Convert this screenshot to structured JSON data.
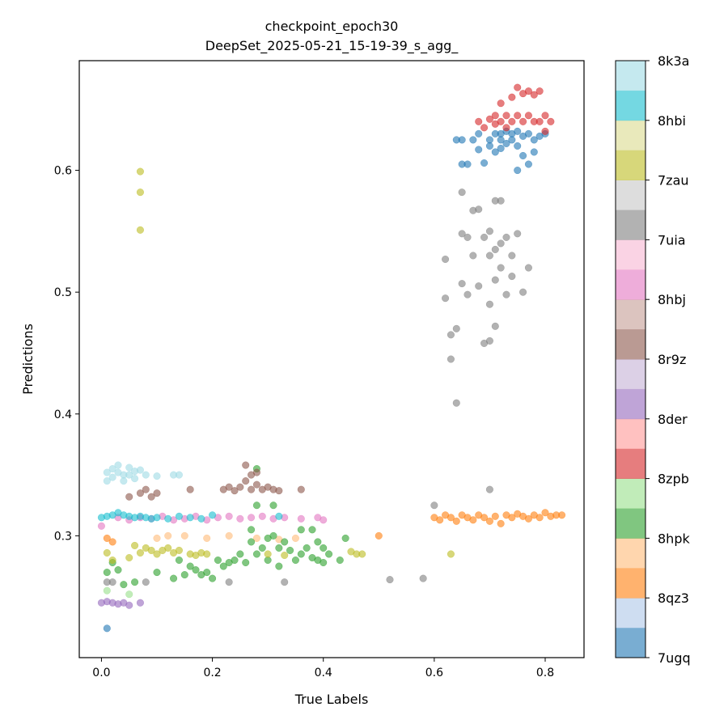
{
  "chart_data": {
    "type": "scatter",
    "title": "checkpoint_epoch30",
    "subtitle": "DeepSet_2025-05-21_15-19-39_s_agg_",
    "xlabel": "True Labels",
    "ylabel": "Predictions",
    "xlim": [
      -0.04,
      0.87
    ],
    "ylim": [
      0.2,
      0.69
    ],
    "xticks": [
      0.0,
      0.2,
      0.4,
      0.6,
      0.8
    ],
    "xtick_labels": [
      "0.0",
      "0.2",
      "0.4",
      "0.6",
      "0.8"
    ],
    "yticks": [
      0.3,
      0.4,
      0.5,
      0.6
    ],
    "ytick_labels": [
      "0.3",
      "0.4",
      "0.5",
      "0.6"
    ],
    "grid": false,
    "colorbar": {
      "placement": "right",
      "labels": [
        "7ugq",
        "8qz3",
        "8hpk",
        "8zpb",
        "8der",
        "8r9z",
        "8hbj",
        "7uia",
        "7zau",
        "8hbi",
        "8k3a"
      ],
      "colors": [
        "#1f77b4",
        "#aec7e8",
        "#ff7f0e",
        "#ffbb78",
        "#2ca02c",
        "#98df8a",
        "#d62728",
        "#ff9896",
        "#9467bd",
        "#c5b0d5",
        "#8c564b",
        "#c49c94",
        "#e377c2",
        "#f7b6d2",
        "#7f7f7f",
        "#c7c7c7",
        "#bcbd22",
        "#dbdb8d",
        "#17becf",
        "#9edae5"
      ]
    },
    "series": [
      {
        "color": "#1f77b4",
        "points": [
          [
            0.01,
            0.224
          ],
          [
            0.64,
            0.625
          ],
          [
            0.65,
            0.625
          ],
          [
            0.65,
            0.605
          ],
          [
            0.66,
            0.605
          ],
          [
            0.67,
            0.625
          ],
          [
            0.68,
            0.63
          ],
          [
            0.68,
            0.617
          ],
          [
            0.69,
            0.606
          ],
          [
            0.7,
            0.625
          ],
          [
            0.7,
            0.62
          ],
          [
            0.71,
            0.63
          ],
          [
            0.71,
            0.615
          ],
          [
            0.72,
            0.63
          ],
          [
            0.72,
            0.625
          ],
          [
            0.72,
            0.618
          ],
          [
            0.73,
            0.632
          ],
          [
            0.73,
            0.622
          ],
          [
            0.74,
            0.63
          ],
          [
            0.74,
            0.625
          ],
          [
            0.75,
            0.632
          ],
          [
            0.75,
            0.62
          ],
          [
            0.75,
            0.6
          ],
          [
            0.76,
            0.628
          ],
          [
            0.76,
            0.612
          ],
          [
            0.77,
            0.63
          ],
          [
            0.77,
            0.605
          ],
          [
            0.78,
            0.625
          ],
          [
            0.78,
            0.615
          ],
          [
            0.79,
            0.628
          ],
          [
            0.8,
            0.63
          ]
        ]
      },
      {
        "color": "#ff7f0e",
        "points": [
          [
            0.01,
            0.298
          ],
          [
            0.02,
            0.295
          ],
          [
            0.5,
            0.3
          ],
          [
            0.6,
            0.315
          ],
          [
            0.61,
            0.313
          ],
          [
            0.62,
            0.317
          ],
          [
            0.63,
            0.315
          ],
          [
            0.64,
            0.312
          ],
          [
            0.65,
            0.317
          ],
          [
            0.66,
            0.315
          ],
          [
            0.67,
            0.313
          ],
          [
            0.68,
            0.317
          ],
          [
            0.69,
            0.315
          ],
          [
            0.7,
            0.312
          ],
          [
            0.71,
            0.316
          ],
          [
            0.72,
            0.31
          ],
          [
            0.73,
            0.317
          ],
          [
            0.74,
            0.315
          ],
          [
            0.75,
            0.318
          ],
          [
            0.76,
            0.316
          ],
          [
            0.77,
            0.314
          ],
          [
            0.78,
            0.317
          ],
          [
            0.79,
            0.315
          ],
          [
            0.8,
            0.319
          ],
          [
            0.81,
            0.316
          ],
          [
            0.82,
            0.317
          ],
          [
            0.83,
            0.317
          ]
        ]
      },
      {
        "color": "#ffbb78",
        "points": [
          [
            0.1,
            0.298
          ],
          [
            0.12,
            0.3
          ],
          [
            0.15,
            0.3
          ],
          [
            0.19,
            0.298
          ],
          [
            0.23,
            0.3
          ],
          [
            0.28,
            0.298
          ],
          [
            0.32,
            0.297
          ],
          [
            0.35,
            0.298
          ]
        ]
      },
      {
        "color": "#2ca02c",
        "points": [
          [
            0.01,
            0.27
          ],
          [
            0.02,
            0.278
          ],
          [
            0.03,
            0.272
          ],
          [
            0.04,
            0.26
          ],
          [
            0.06,
            0.262
          ],
          [
            0.1,
            0.27
          ],
          [
            0.13,
            0.265
          ],
          [
            0.14,
            0.28
          ],
          [
            0.15,
            0.268
          ],
          [
            0.16,
            0.275
          ],
          [
            0.17,
            0.272
          ],
          [
            0.18,
            0.268
          ],
          [
            0.19,
            0.27
          ],
          [
            0.2,
            0.265
          ],
          [
            0.21,
            0.28
          ],
          [
            0.22,
            0.275
          ],
          [
            0.23,
            0.278
          ],
          [
            0.24,
            0.28
          ],
          [
            0.25,
            0.285
          ],
          [
            0.26,
            0.278
          ],
          [
            0.27,
            0.305
          ],
          [
            0.27,
            0.295
          ],
          [
            0.28,
            0.285
          ],
          [
            0.28,
            0.355
          ],
          [
            0.29,
            0.29
          ],
          [
            0.3,
            0.298
          ],
          [
            0.3,
            0.28
          ],
          [
            0.31,
            0.3
          ],
          [
            0.32,
            0.29
          ],
          [
            0.32,
            0.275
          ],
          [
            0.33,
            0.295
          ],
          [
            0.34,
            0.288
          ],
          [
            0.35,
            0.28
          ],
          [
            0.36,
            0.285
          ],
          [
            0.36,
            0.305
          ],
          [
            0.37,
            0.29
          ],
          [
            0.38,
            0.282
          ],
          [
            0.38,
            0.305
          ],
          [
            0.39,
            0.295
          ],
          [
            0.39,
            0.28
          ],
          [
            0.4,
            0.278
          ],
          [
            0.4,
            0.29
          ],
          [
            0.41,
            0.285
          ],
          [
            0.43,
            0.28
          ],
          [
            0.44,
            0.298
          ],
          [
            0.28,
            0.325
          ],
          [
            0.31,
            0.325
          ]
        ]
      },
      {
        "color": "#98df8a",
        "points": [
          [
            0.01,
            0.255
          ],
          [
            0.05,
            0.252
          ]
        ]
      },
      {
        "color": "#d62728",
        "points": [
          [
            0.68,
            0.64
          ],
          [
            0.69,
            0.635
          ],
          [
            0.7,
            0.642
          ],
          [
            0.71,
            0.638
          ],
          [
            0.71,
            0.645
          ],
          [
            0.72,
            0.64
          ],
          [
            0.72,
            0.655
          ],
          [
            0.73,
            0.635
          ],
          [
            0.73,
            0.645
          ],
          [
            0.74,
            0.66
          ],
          [
            0.74,
            0.64
          ],
          [
            0.75,
            0.668
          ],
          [
            0.75,
            0.645
          ],
          [
            0.76,
            0.663
          ],
          [
            0.76,
            0.64
          ],
          [
            0.77,
            0.665
          ],
          [
            0.77,
            0.645
          ],
          [
            0.78,
            0.662
          ],
          [
            0.78,
            0.64
          ],
          [
            0.79,
            0.665
          ],
          [
            0.79,
            0.64
          ],
          [
            0.8,
            0.645
          ],
          [
            0.8,
            0.632
          ],
          [
            0.81,
            0.64
          ]
        ]
      },
      {
        "color": "#9467bd",
        "points": [
          [
            0.0,
            0.245
          ],
          [
            0.01,
            0.246
          ],
          [
            0.02,
            0.245
          ],
          [
            0.03,
            0.244
          ],
          [
            0.04,
            0.245
          ],
          [
            0.05,
            0.243
          ],
          [
            0.07,
            0.245
          ]
        ]
      },
      {
        "color": "#8c564b",
        "points": [
          [
            0.05,
            0.332
          ],
          [
            0.07,
            0.335
          ],
          [
            0.08,
            0.338
          ],
          [
            0.09,
            0.332
          ],
          [
            0.1,
            0.335
          ],
          [
            0.16,
            0.338
          ],
          [
            0.22,
            0.338
          ],
          [
            0.23,
            0.34
          ],
          [
            0.24,
            0.337
          ],
          [
            0.25,
            0.34
          ],
          [
            0.26,
            0.345
          ],
          [
            0.26,
            0.358
          ],
          [
            0.27,
            0.338
          ],
          [
            0.27,
            0.35
          ],
          [
            0.28,
            0.342
          ],
          [
            0.28,
            0.352
          ],
          [
            0.29,
            0.338
          ],
          [
            0.3,
            0.34
          ],
          [
            0.31,
            0.338
          ],
          [
            0.32,
            0.337
          ],
          [
            0.36,
            0.338
          ]
        ]
      },
      {
        "color": "#e377c2",
        "points": [
          [
            0.0,
            0.308
          ],
          [
            0.03,
            0.315
          ],
          [
            0.05,
            0.313
          ],
          [
            0.07,
            0.315
          ],
          [
            0.09,
            0.314
          ],
          [
            0.11,
            0.316
          ],
          [
            0.13,
            0.313
          ],
          [
            0.15,
            0.314
          ],
          [
            0.17,
            0.316
          ],
          [
            0.19,
            0.313
          ],
          [
            0.21,
            0.315
          ],
          [
            0.23,
            0.316
          ],
          [
            0.25,
            0.314
          ],
          [
            0.27,
            0.315
          ],
          [
            0.29,
            0.316
          ],
          [
            0.31,
            0.314
          ],
          [
            0.33,
            0.315
          ],
          [
            0.36,
            0.314
          ],
          [
            0.39,
            0.315
          ],
          [
            0.4,
            0.313
          ]
        ]
      },
      {
        "color": "#7f7f7f",
        "points": [
          [
            0.01,
            0.262
          ],
          [
            0.02,
            0.262
          ],
          [
            0.08,
            0.262
          ],
          [
            0.23,
            0.262
          ],
          [
            0.33,
            0.262
          ],
          [
            0.52,
            0.264
          ],
          [
            0.58,
            0.265
          ],
          [
            0.6,
            0.325
          ],
          [
            0.62,
            0.527
          ],
          [
            0.62,
            0.495
          ],
          [
            0.63,
            0.465
          ],
          [
            0.63,
            0.445
          ],
          [
            0.64,
            0.47
          ],
          [
            0.64,
            0.409
          ],
          [
            0.65,
            0.582
          ],
          [
            0.65,
            0.548
          ],
          [
            0.65,
            0.507
          ],
          [
            0.66,
            0.545
          ],
          [
            0.66,
            0.498
          ],
          [
            0.67,
            0.567
          ],
          [
            0.67,
            0.53
          ],
          [
            0.68,
            0.568
          ],
          [
            0.68,
            0.505
          ],
          [
            0.69,
            0.545
          ],
          [
            0.69,
            0.458
          ],
          [
            0.7,
            0.55
          ],
          [
            0.7,
            0.53
          ],
          [
            0.7,
            0.49
          ],
          [
            0.7,
            0.46
          ],
          [
            0.71,
            0.575
          ],
          [
            0.71,
            0.535
          ],
          [
            0.71,
            0.51
          ],
          [
            0.71,
            0.472
          ],
          [
            0.72,
            0.575
          ],
          [
            0.72,
            0.54
          ],
          [
            0.72,
            0.52
          ],
          [
            0.73,
            0.545
          ],
          [
            0.73,
            0.498
          ],
          [
            0.74,
            0.53
          ],
          [
            0.74,
            0.513
          ],
          [
            0.75,
            0.548
          ],
          [
            0.76,
            0.5
          ],
          [
            0.77,
            0.52
          ],
          [
            0.7,
            0.338
          ]
        ]
      },
      {
        "color": "#bcbd22",
        "points": [
          [
            0.07,
            0.599
          ],
          [
            0.07,
            0.582
          ],
          [
            0.07,
            0.551
          ],
          [
            0.01,
            0.286
          ],
          [
            0.02,
            0.28
          ],
          [
            0.05,
            0.282
          ],
          [
            0.06,
            0.292
          ],
          [
            0.07,
            0.286
          ],
          [
            0.08,
            0.29
          ],
          [
            0.09,
            0.288
          ],
          [
            0.1,
            0.285
          ],
          [
            0.11,
            0.288
          ],
          [
            0.12,
            0.29
          ],
          [
            0.13,
            0.286
          ],
          [
            0.14,
            0.288
          ],
          [
            0.16,
            0.285
          ],
          [
            0.17,
            0.284
          ],
          [
            0.18,
            0.286
          ],
          [
            0.19,
            0.285
          ],
          [
            0.3,
            0.285
          ],
          [
            0.33,
            0.284
          ],
          [
            0.45,
            0.287
          ],
          [
            0.46,
            0.285
          ],
          [
            0.47,
            0.285
          ],
          [
            0.63,
            0.285
          ]
        ]
      },
      {
        "color": "#17becf",
        "points": [
          [
            0.0,
            0.315
          ],
          [
            0.01,
            0.316
          ],
          [
            0.02,
            0.317
          ],
          [
            0.03,
            0.319
          ],
          [
            0.04,
            0.317
          ],
          [
            0.05,
            0.316
          ],
          [
            0.06,
            0.315
          ],
          [
            0.07,
            0.316
          ],
          [
            0.08,
            0.315
          ],
          [
            0.09,
            0.314
          ],
          [
            0.1,
            0.315
          ],
          [
            0.12,
            0.314
          ],
          [
            0.14,
            0.316
          ],
          [
            0.16,
            0.315
          ],
          [
            0.18,
            0.314
          ],
          [
            0.2,
            0.317
          ],
          [
            0.32,
            0.316
          ]
        ]
      },
      {
        "color": "#9edae5",
        "points": [
          [
            0.01,
            0.345
          ],
          [
            0.01,
            0.352
          ],
          [
            0.02,
            0.348
          ],
          [
            0.02,
            0.355
          ],
          [
            0.03,
            0.352
          ],
          [
            0.03,
            0.358
          ],
          [
            0.04,
            0.35
          ],
          [
            0.04,
            0.345
          ],
          [
            0.05,
            0.356
          ],
          [
            0.05,
            0.35
          ],
          [
            0.06,
            0.353
          ],
          [
            0.06,
            0.347
          ],
          [
            0.07,
            0.354
          ],
          [
            0.08,
            0.35
          ],
          [
            0.1,
            0.349
          ],
          [
            0.13,
            0.35
          ],
          [
            0.14,
            0.35
          ]
        ]
      }
    ]
  }
}
